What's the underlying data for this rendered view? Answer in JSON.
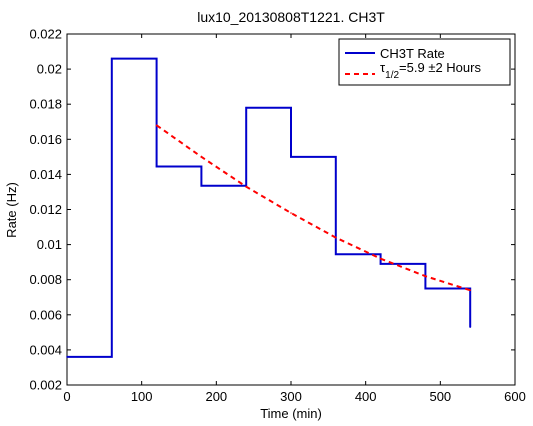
{
  "chart_data": {
    "type": "line",
    "title": "lux10_20130808T1221. CH3T",
    "xlabel": "Time (min)",
    "ylabel": "Rate (Hz)",
    "xlim": [
      0,
      600
    ],
    "ylim": [
      0.002,
      0.022
    ],
    "x_ticks": [
      0,
      100,
      200,
      300,
      400,
      500,
      600
    ],
    "y_ticks": [
      0.002,
      0.004,
      0.006,
      0.008,
      0.01,
      0.012,
      0.014,
      0.016,
      0.018,
      0.02,
      0.022
    ],
    "x_tick_labels": [
      "0",
      "100",
      "200",
      "300",
      "400",
      "500",
      "600"
    ],
    "y_tick_labels": [
      "0.002",
      "0.004",
      "0.006",
      "0.008",
      "0.01",
      "0.012",
      "0.014",
      "0.016",
      "0.018",
      "0.02",
      "0.022"
    ],
    "grid": false,
    "legend_position": "top-right",
    "series": [
      {
        "name": "CH3T Rate",
        "style": "stairs",
        "color": "#0000cc",
        "x": [
          0,
          60,
          120,
          180,
          240,
          300,
          360,
          420,
          480,
          540
        ],
        "y": [
          0.0036,
          0.0206,
          0.01445,
          0.01335,
          0.0178,
          0.015,
          0.00945,
          0.0089,
          0.0075,
          0.0053
        ]
      },
      {
        "name_prefix": "τ",
        "name_sub": "1/2",
        "name_suffix": "=5.9  ±2 Hours",
        "style": "dashed",
        "color": "#ff0000",
        "x": [
          120,
          180,
          240,
          300,
          360,
          420,
          480,
          540
        ],
        "y": [
          0.0168,
          0.015,
          0.0133,
          0.0118,
          0.0104,
          0.0092,
          0.0082,
          0.0074
        ]
      }
    ]
  }
}
